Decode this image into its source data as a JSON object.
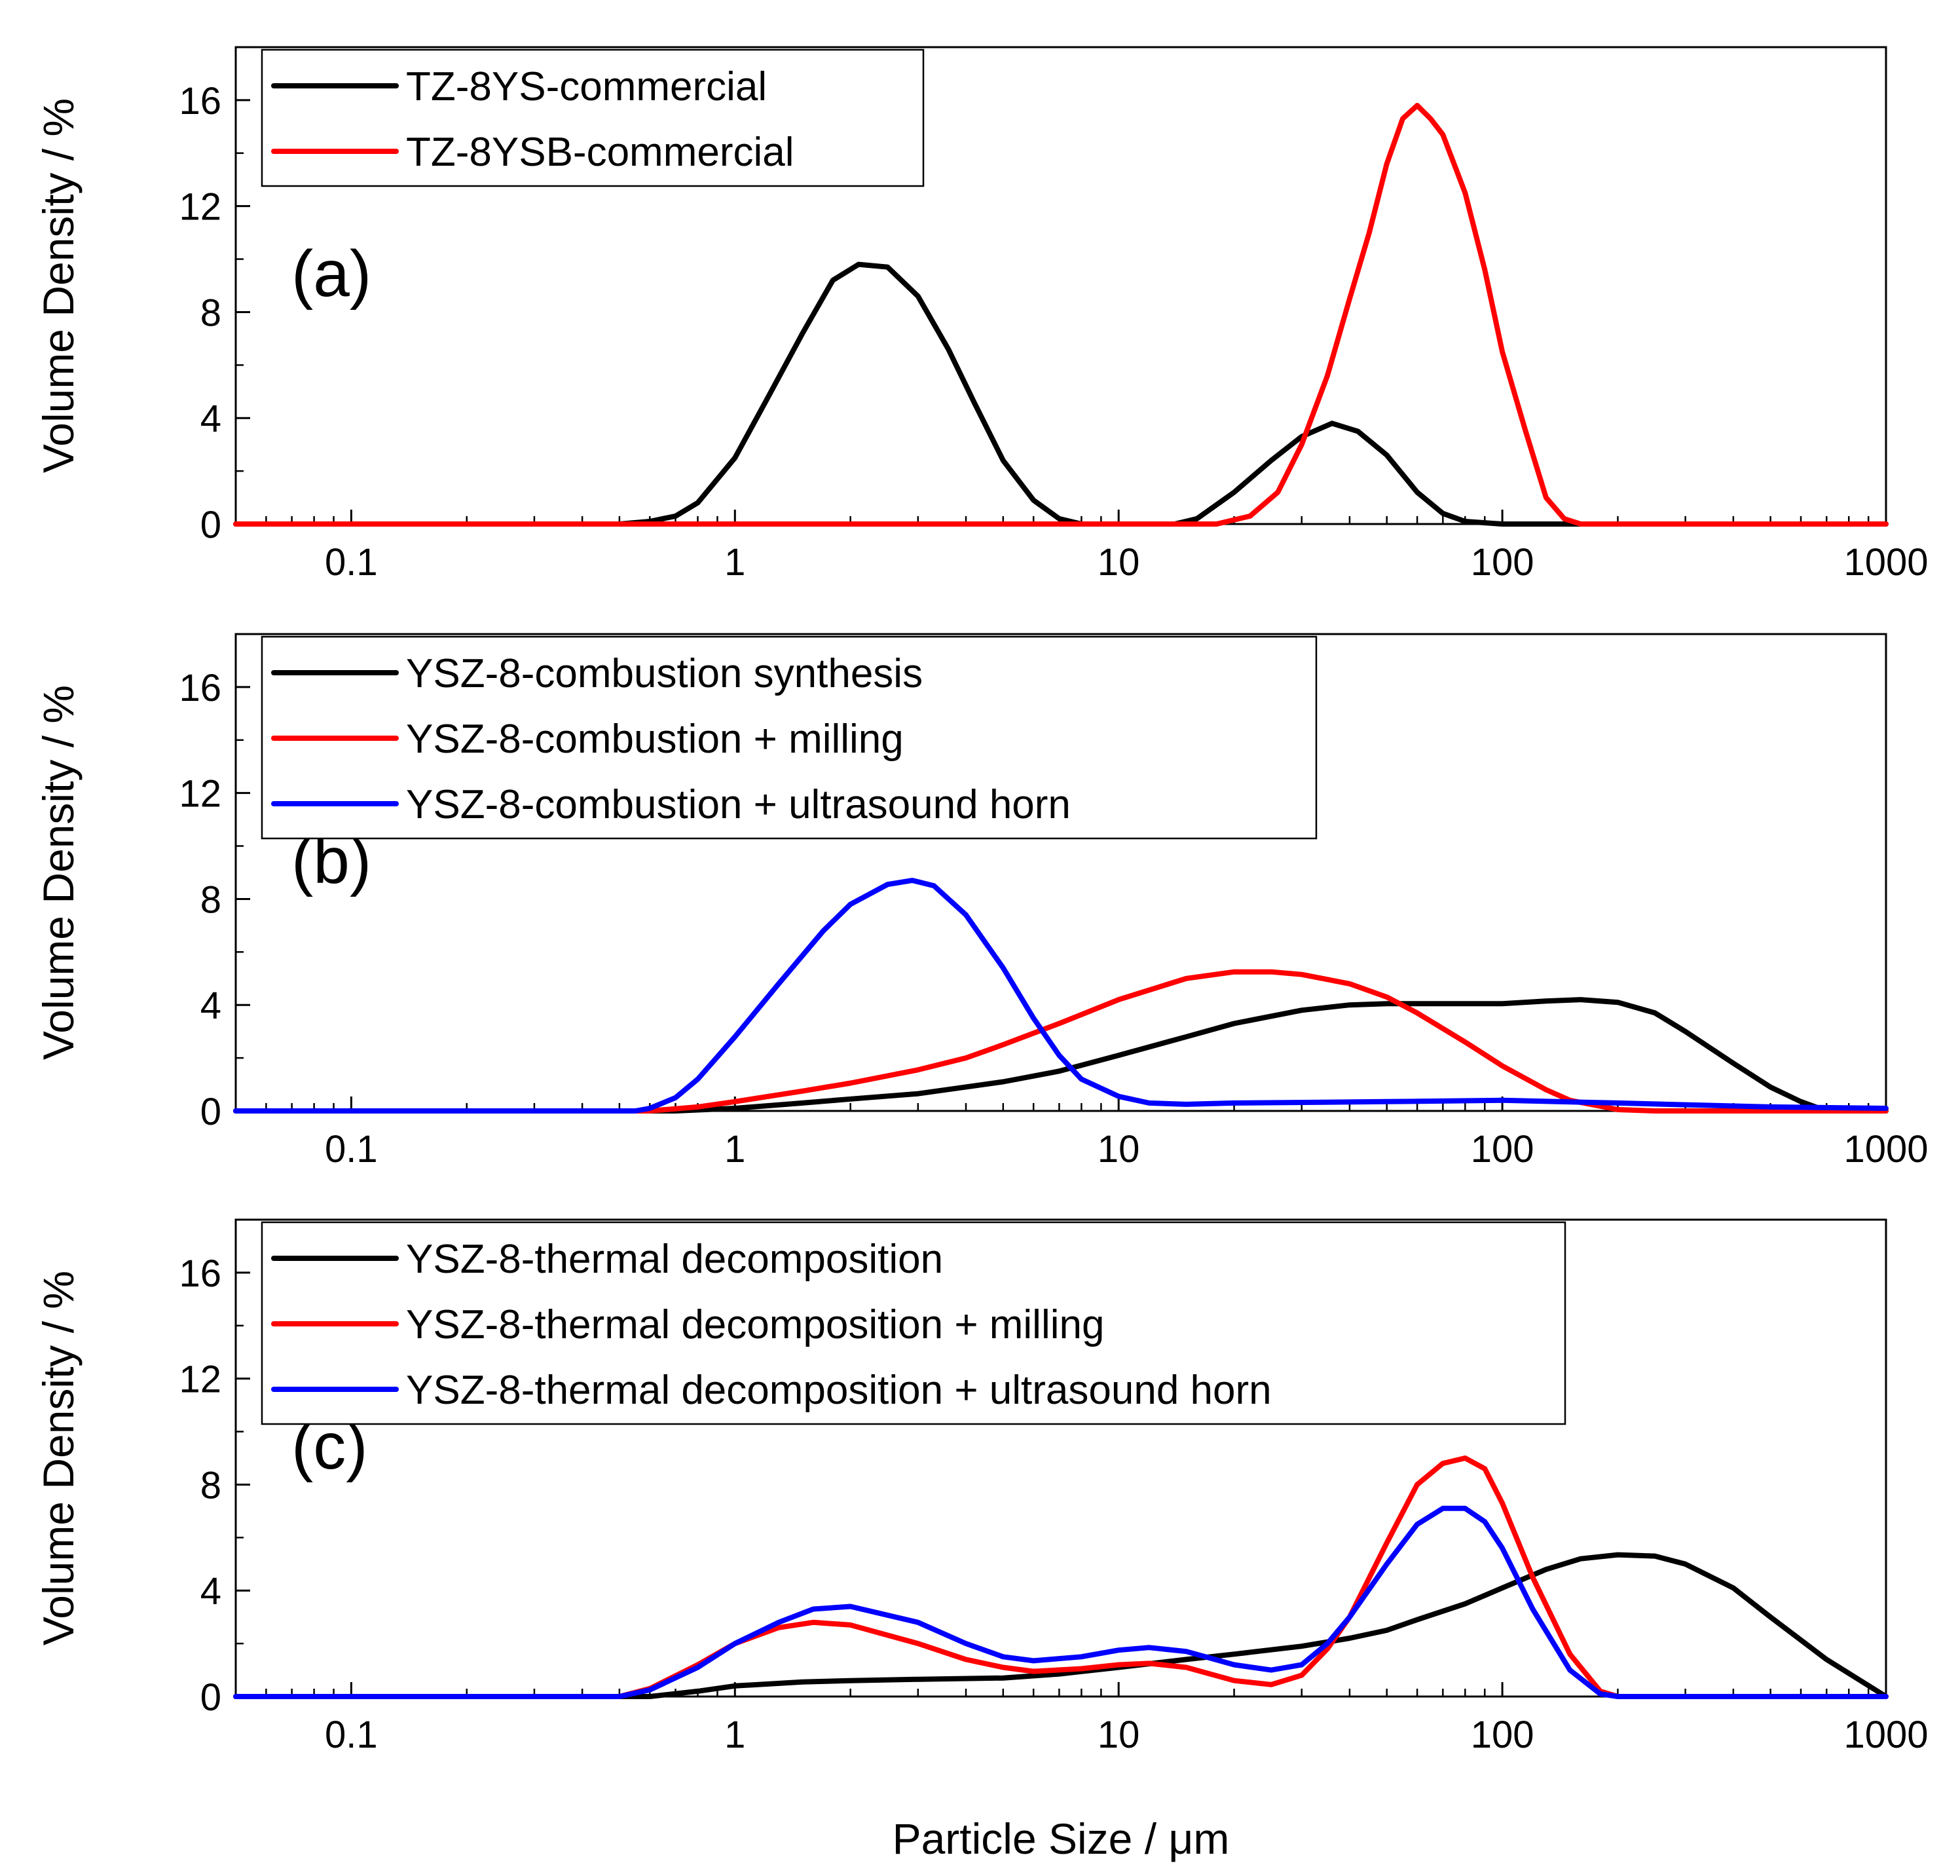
{
  "chart_data": [
    {
      "type": "line",
      "panel": "(a)",
      "xscale": "log",
      "xlim": [
        0.05,
        1000
      ],
      "ylim": [
        0,
        18
      ],
      "xticks": [
        "0.1",
        "1",
        "10",
        "100",
        "1000"
      ],
      "yticks": [
        "0",
        "4",
        "8",
        "12",
        "16"
      ],
      "ylabel": "Volume Density / %",
      "xlabel": "",
      "legend": "top-left",
      "series": [
        {
          "name": "TZ-8YS-commercial",
          "color": "#000000",
          "x": [
            0.05,
            0.5,
            0.6,
            0.7,
            0.8,
            1.0,
            1.2,
            1.5,
            1.8,
            2.1,
            2.5,
            3.0,
            3.6,
            4.2,
            5.0,
            6.0,
            7.0,
            8.0,
            10,
            14,
            16,
            20,
            25,
            30,
            36,
            42,
            50,
            60,
            70,
            80,
            100,
            1000
          ],
          "y": [
            0,
            0,
            0.1,
            0.3,
            0.8,
            2.5,
            4.6,
            7.2,
            9.2,
            9.8,
            9.7,
            8.6,
            6.6,
            4.6,
            2.4,
            0.9,
            0.2,
            0,
            0,
            0,
            0.2,
            1.2,
            2.4,
            3.3,
            3.8,
            3.5,
            2.6,
            1.2,
            0.4,
            0.1,
            0,
            0
          ]
        },
        {
          "name": "TZ-8YSB-commercial",
          "color": "#ff0000",
          "x": [
            0.05,
            18,
            22,
            26,
            30,
            35,
            40,
            45,
            50,
            55,
            60,
            65,
            70,
            80,
            90,
            100,
            115,
            130,
            145,
            160,
            1000
          ],
          "y": [
            0,
            0,
            0.3,
            1.2,
            3.0,
            5.6,
            8.5,
            11.0,
            13.6,
            15.3,
            15.8,
            15.3,
            14.7,
            12.5,
            9.6,
            6.5,
            3.5,
            1.0,
            0.2,
            0,
            0
          ]
        }
      ]
    },
    {
      "type": "line",
      "panel": "(b)",
      "xscale": "log",
      "xlim": [
        0.05,
        1000
      ],
      "ylim": [
        0,
        18
      ],
      "xticks": [
        "0.1",
        "1",
        "10",
        "100",
        "1000"
      ],
      "yticks": [
        "0",
        "4",
        "8",
        "12",
        "16"
      ],
      "ylabel": "Volume Density / %",
      "xlabel": "",
      "legend": "top-left",
      "series": [
        {
          "name": "YSZ-8-combustion synthesis",
          "color": "#000000",
          "x": [
            0.05,
            0.7,
            1.0,
            1.5,
            2.0,
            3.0,
            5.0,
            7.0,
            10,
            15,
            20,
            30,
            40,
            50,
            70,
            100,
            130,
            160,
            200,
            250,
            300,
            400,
            500,
            600,
            700,
            1000
          ],
          "y": [
            0,
            0,
            0.1,
            0.3,
            0.45,
            0.65,
            1.1,
            1.5,
            2.1,
            2.8,
            3.3,
            3.8,
            4.0,
            4.05,
            4.05,
            4.05,
            4.15,
            4.2,
            4.1,
            3.7,
            3.0,
            1.8,
            0.9,
            0.35,
            0,
            0
          ]
        },
        {
          "name": "YSZ-8-combustion + milling",
          "color": "#ff0000",
          "x": [
            0.05,
            0.6,
            0.8,
            1.0,
            1.5,
            2.0,
            3.0,
            4.0,
            5.0,
            7.0,
            10,
            15,
            20,
            25,
            30,
            40,
            50,
            60,
            80,
            100,
            130,
            150,
            200,
            250,
            1000
          ],
          "y": [
            0,
            0,
            0.15,
            0.35,
            0.75,
            1.05,
            1.55,
            2.0,
            2.5,
            3.3,
            4.2,
            5.0,
            5.25,
            5.25,
            5.15,
            4.8,
            4.3,
            3.7,
            2.6,
            1.7,
            0.8,
            0.4,
            0.05,
            0,
            0
          ]
        },
        {
          "name": "YSZ-8-combustion + ultrasound horn",
          "color": "#0000ff",
          "x": [
            0.05,
            0.55,
            0.6,
            0.7,
            0.8,
            1.0,
            1.3,
            1.7,
            2.0,
            2.5,
            2.9,
            3.3,
            4.0,
            5.0,
            6.0,
            7.0,
            8.0,
            10,
            12,
            15,
            20,
            50,
            100,
            200,
            500,
            1000
          ],
          "y": [
            0,
            0,
            0.1,
            0.5,
            1.2,
            2.8,
            4.8,
            6.8,
            7.8,
            8.55,
            8.7,
            8.5,
            7.4,
            5.4,
            3.5,
            2.1,
            1.2,
            0.55,
            0.3,
            0.25,
            0.3,
            0.35,
            0.4,
            0.3,
            0.15,
            0.1
          ]
        }
      ]
    },
    {
      "type": "line",
      "panel": "(c)",
      "xscale": "log",
      "xlim": [
        0.05,
        1000
      ],
      "ylim": [
        0,
        18
      ],
      "xticks": [
        "0.1",
        "1",
        "10",
        "100",
        "1000"
      ],
      "yticks": [
        "0",
        "4",
        "8",
        "12",
        "16"
      ],
      "ylabel": "Volume Density / %",
      "xlabel": "Particle Size / μm",
      "legend": "top-left",
      "series": [
        {
          "name": "YSZ-8-thermal decomposition",
          "color": "#000000",
          "x": [
            0.05,
            0.6,
            0.8,
            1.0,
            1.5,
            2.0,
            3.0,
            5.0,
            7.0,
            10,
            15,
            20,
            30,
            40,
            50,
            60,
            80,
            100,
            130,
            160,
            200,
            250,
            300,
            400,
            500,
            700,
            1000
          ],
          "y": [
            0,
            0,
            0.2,
            0.4,
            0.55,
            0.6,
            0.65,
            0.7,
            0.85,
            1.1,
            1.4,
            1.6,
            1.9,
            2.2,
            2.5,
            2.9,
            3.5,
            4.1,
            4.8,
            5.2,
            5.35,
            5.3,
            5.0,
            4.1,
            3.0,
            1.4,
            0
          ]
        },
        {
          "name": "YSZ-8-thermal decomposition + milling",
          "color": "#ff0000",
          "x": [
            0.05,
            0.5,
            0.6,
            0.8,
            1.0,
            1.3,
            1.6,
            2.0,
            3.0,
            4.0,
            5.0,
            6.0,
            8.0,
            10,
            12,
            15,
            20,
            25,
            30,
            35,
            40,
            50,
            60,
            70,
            80,
            90,
            100,
            120,
            150,
            180,
            200,
            1000
          ],
          "y": [
            0,
            0,
            0.3,
            1.2,
            2.0,
            2.6,
            2.8,
            2.7,
            2.0,
            1.4,
            1.1,
            0.95,
            1.05,
            1.2,
            1.25,
            1.1,
            0.6,
            0.45,
            0.8,
            1.8,
            3.0,
            5.8,
            8.0,
            8.8,
            9.0,
            8.6,
            7.3,
            4.5,
            1.6,
            0.2,
            0,
            0
          ]
        },
        {
          "name": "YSZ-8-thermal decomposition + ultrasound horn",
          "color": "#0000ff",
          "x": [
            0.05,
            0.5,
            0.6,
            0.8,
            1.0,
            1.3,
            1.6,
            2.0,
            3.0,
            4.0,
            5.0,
            6.0,
            8.0,
            10,
            12,
            15,
            20,
            25,
            30,
            35,
            40,
            50,
            60,
            70,
            80,
            90,
            100,
            120,
            150,
            180,
            200,
            1000
          ],
          "y": [
            0,
            0,
            0.25,
            1.1,
            2.0,
            2.8,
            3.3,
            3.4,
            2.8,
            2.0,
            1.5,
            1.35,
            1.5,
            1.75,
            1.85,
            1.7,
            1.2,
            1.0,
            1.2,
            2.0,
            3.0,
            5.0,
            6.5,
            7.1,
            7.1,
            6.6,
            5.6,
            3.3,
            1.0,
            0.1,
            0,
            0
          ]
        }
      ]
    }
  ]
}
